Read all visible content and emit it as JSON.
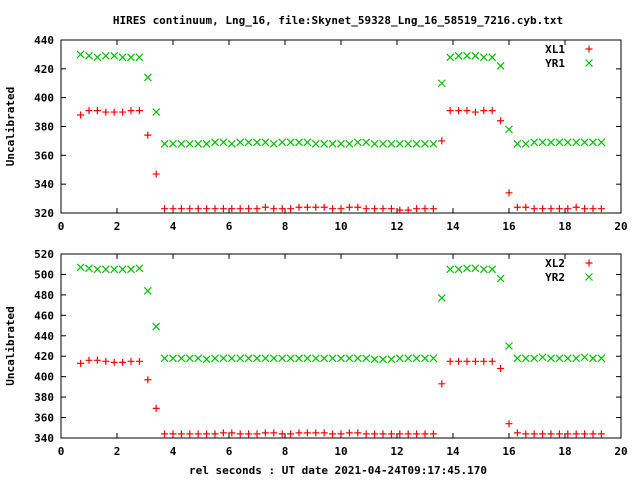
{
  "chart_data": [
    {
      "type": "scatter",
      "title": "HIRES continuum, Lng_16, file:Skynet_59328_Lng_16_58519_7216.cyb.txt",
      "xlabel": "",
      "ylabel": "Uncalibrated",
      "xlim": [
        0,
        20
      ],
      "ylim": [
        320,
        440
      ],
      "xticks": [
        "0",
        "2",
        "4",
        "6",
        "8",
        "10",
        "12",
        "14",
        "16",
        "18",
        "20"
      ],
      "yticks": [
        "320",
        "340",
        "360",
        "380",
        "400",
        "420",
        "440"
      ],
      "legend_position": "top-right",
      "x": [
        0.7,
        1.0,
        1.3,
        1.6,
        1.9,
        2.2,
        2.5,
        2.8,
        3.1,
        3.4,
        3.7,
        4.0,
        4.3,
        4.6,
        4.9,
        5.2,
        5.5,
        5.8,
        6.1,
        6.4,
        6.7,
        7.0,
        7.3,
        7.6,
        7.9,
        8.2,
        8.5,
        8.8,
        9.1,
        9.4,
        9.7,
        10.0,
        10.3,
        10.6,
        10.9,
        11.2,
        11.5,
        11.8,
        12.1,
        12.4,
        12.7,
        13.0,
        13.3,
        13.6,
        13.9,
        14.2,
        14.5,
        14.8,
        15.1,
        15.4,
        15.7,
        16.0,
        16.3,
        16.6,
        16.9,
        17.2,
        17.5,
        17.8,
        18.1,
        18.4,
        18.7,
        19.0,
        19.3
      ],
      "series": [
        {
          "name": "XL1",
          "marker": "plus",
          "color": "#ff0000",
          "values": [
            388,
            391,
            391,
            390,
            390,
            390,
            391,
            391,
            374,
            347,
            323,
            323,
            323,
            323,
            323,
            323,
            323,
            323,
            323,
            323,
            323,
            323,
            324,
            323,
            323,
            323,
            324,
            324,
            324,
            324,
            323,
            323,
            324,
            324,
            323,
            323,
            323,
            323,
            322,
            322,
            323,
            323,
            323,
            370,
            391,
            391,
            391,
            390,
            391,
            391,
            384,
            334,
            324,
            324,
            323,
            323,
            323,
            323,
            323,
            324,
            323,
            323,
            323
          ]
        },
        {
          "name": "YR1",
          "marker": "cross",
          "color": "#00c000",
          "values": [
            430,
            429,
            428,
            429,
            429,
            428,
            428,
            428,
            414,
            390,
            368,
            368,
            368,
            368,
            368,
            368,
            369,
            369,
            368,
            369,
            369,
            369,
            369,
            368,
            369,
            369,
            369,
            369,
            368,
            368,
            368,
            368,
            368,
            369,
            369,
            368,
            368,
            368,
            368,
            368,
            368,
            368,
            368,
            410,
            428,
            429,
            429,
            429,
            428,
            428,
            422,
            378,
            368,
            368,
            369,
            369,
            369,
            369,
            369,
            369,
            369,
            369,
            369
          ]
        }
      ]
    },
    {
      "type": "scatter",
      "title": "",
      "xlabel": "rel seconds : UT date 2021-04-24T09:17:45.170",
      "ylabel": "Uncalibrated",
      "xlim": [
        0,
        20
      ],
      "ylim": [
        340,
        520
      ],
      "xticks": [
        "0",
        "2",
        "4",
        "6",
        "8",
        "10",
        "12",
        "14",
        "16",
        "18",
        "20"
      ],
      "yticks": [
        "340",
        "360",
        "380",
        "400",
        "420",
        "440",
        "460",
        "480",
        "500",
        "520"
      ],
      "legend_position": "top-right",
      "x": [
        0.7,
        1.0,
        1.3,
        1.6,
        1.9,
        2.2,
        2.5,
        2.8,
        3.1,
        3.4,
        3.7,
        4.0,
        4.3,
        4.6,
        4.9,
        5.2,
        5.5,
        5.8,
        6.1,
        6.4,
        6.7,
        7.0,
        7.3,
        7.6,
        7.9,
        8.2,
        8.5,
        8.8,
        9.1,
        9.4,
        9.7,
        10.0,
        10.3,
        10.6,
        10.9,
        11.2,
        11.5,
        11.8,
        12.1,
        12.4,
        12.7,
        13.0,
        13.3,
        13.6,
        13.9,
        14.2,
        14.5,
        14.8,
        15.1,
        15.4,
        15.7,
        16.0,
        16.3,
        16.6,
        16.9,
        17.2,
        17.5,
        17.8,
        18.1,
        18.4,
        18.7,
        19.0,
        19.3
      ],
      "series": [
        {
          "name": "XL2",
          "marker": "plus",
          "color": "#ff0000",
          "values": [
            413,
            416,
            416,
            415,
            414,
            414,
            415,
            415,
            397,
            369,
            344,
            344,
            344,
            344,
            344,
            344,
            344,
            345,
            345,
            344,
            344,
            344,
            345,
            345,
            344,
            344,
            345,
            345,
            345,
            345,
            344,
            344,
            345,
            345,
            344,
            344,
            344,
            344,
            344,
            344,
            344,
            344,
            344,
            393,
            415,
            415,
            415,
            415,
            415,
            415,
            408,
            354,
            345,
            344,
            344,
            344,
            344,
            344,
            344,
            344,
            344,
            344,
            344
          ]
        },
        {
          "name": "YR2",
          "marker": "cross",
          "color": "#00c000",
          "values": [
            507,
            506,
            505,
            505,
            505,
            505,
            505,
            506,
            484,
            449,
            418,
            418,
            418,
            418,
            418,
            417,
            418,
            418,
            418,
            418,
            418,
            418,
            418,
            418,
            418,
            418,
            418,
            418,
            418,
            418,
            418,
            418,
            418,
            418,
            418,
            417,
            417,
            417,
            418,
            418,
            418,
            418,
            418,
            477,
            505,
            505,
            506,
            506,
            505,
            505,
            496,
            430,
            418,
            418,
            418,
            419,
            418,
            418,
            418,
            418,
            419,
            418,
            418
          ]
        }
      ]
    }
  ]
}
